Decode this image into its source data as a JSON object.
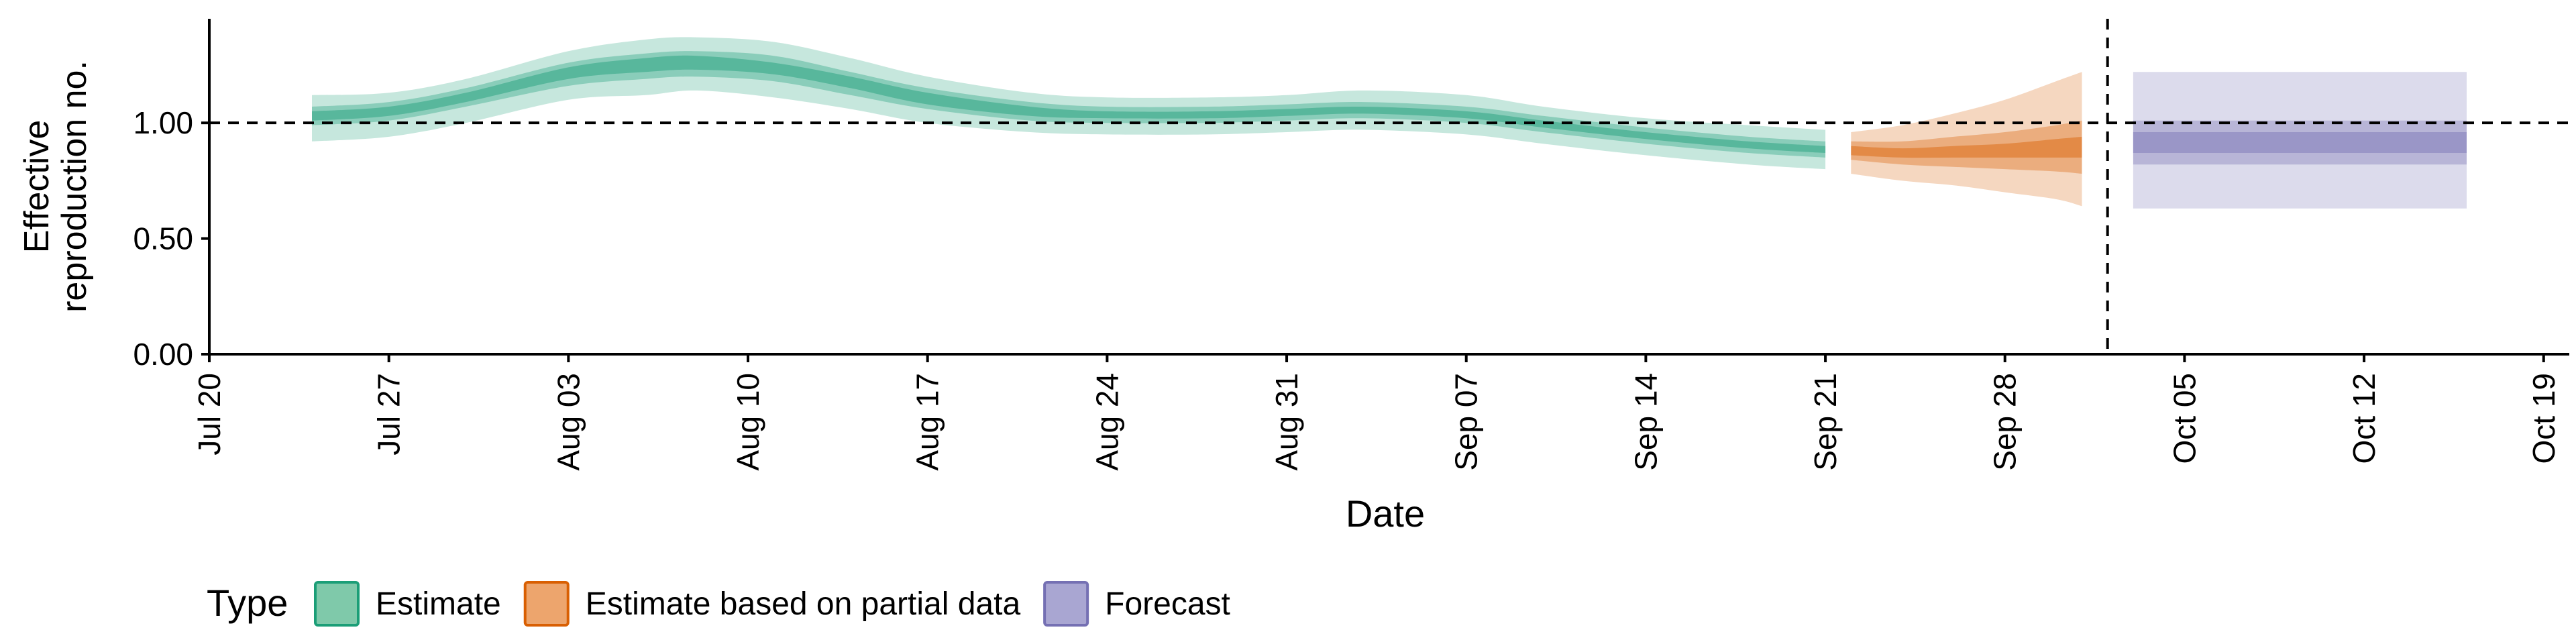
{
  "chart_data": {
    "type": "area",
    "xlabel": "Date",
    "ylabel_lines": [
      "Effective",
      "reproduction no."
    ],
    "ylim": [
      0,
      1.45
    ],
    "xlim": [
      "2020-07-20",
      "2020-10-20"
    ],
    "grid": false,
    "yticks": [
      {
        "value": 0.0,
        "label": "0.00"
      },
      {
        "value": 0.5,
        "label": "0.50"
      },
      {
        "value": 1.0,
        "label": "1.00"
      }
    ],
    "xticks": [
      {
        "date": "2020-07-20",
        "label": "Jul 20"
      },
      {
        "date": "2020-07-27",
        "label": "Jul 27"
      },
      {
        "date": "2020-08-03",
        "label": "Aug 03"
      },
      {
        "date": "2020-08-10",
        "label": "Aug 10"
      },
      {
        "date": "2020-08-17",
        "label": "Aug 17"
      },
      {
        "date": "2020-08-24",
        "label": "Aug 24"
      },
      {
        "date": "2020-08-31",
        "label": "Aug 31"
      },
      {
        "date": "2020-09-07",
        "label": "Sep 07"
      },
      {
        "date": "2020-09-14",
        "label": "Sep 14"
      },
      {
        "date": "2020-09-21",
        "label": "Sep 21"
      },
      {
        "date": "2020-09-28",
        "label": "Sep 28"
      },
      {
        "date": "2020-10-05",
        "label": "Oct 05"
      },
      {
        "date": "2020-10-12",
        "label": "Oct 12"
      },
      {
        "date": "2020-10-19",
        "label": "Oct 19"
      }
    ],
    "reference_lines": {
      "horizontal_y": 1.0,
      "vertical_date": "2020-10-02"
    },
    "legend": {
      "position": "bottom-left",
      "title": "Type",
      "entries": [
        {
          "label": "Estimate",
          "fill": "#7fc9aa",
          "stroke": "#1b9e77"
        },
        {
          "label": "Estimate based on partial data",
          "fill": "#eda56d",
          "stroke": "#d95f02"
        },
        {
          "label": "Forecast",
          "fill": "#a9a6d2",
          "stroke": "#7570b3"
        }
      ]
    },
    "series": [
      {
        "type_label": "Estimate",
        "color": "#1b9e77",
        "points": [
          {
            "date": "2020-07-24",
            "lo90": 0.92,
            "lo50": 0.99,
            "lo20": 1.01,
            "hi20": 1.05,
            "hi50": 1.07,
            "hi90": 1.12
          },
          {
            "date": "2020-07-27",
            "lo90": 0.94,
            "lo50": 1.01,
            "lo20": 1.03,
            "hi20": 1.07,
            "hi50": 1.09,
            "hi90": 1.13
          },
          {
            "date": "2020-07-30",
            "lo90": 1.0,
            "lo50": 1.07,
            "lo20": 1.09,
            "hi20": 1.13,
            "hi50": 1.15,
            "hi90": 1.19
          },
          {
            "date": "2020-08-03",
            "lo90": 1.1,
            "lo50": 1.16,
            "lo20": 1.19,
            "hi20": 1.24,
            "hi50": 1.26,
            "hi90": 1.31
          },
          {
            "date": "2020-08-06",
            "lo90": 1.12,
            "lo50": 1.19,
            "lo20": 1.22,
            "hi20": 1.28,
            "hi50": 1.3,
            "hi90": 1.36
          },
          {
            "date": "2020-08-08",
            "lo90": 1.14,
            "lo50": 1.2,
            "lo20": 1.23,
            "hi20": 1.29,
            "hi50": 1.31,
            "hi90": 1.37
          },
          {
            "date": "2020-08-11",
            "lo90": 1.11,
            "lo50": 1.18,
            "lo20": 1.21,
            "hi20": 1.26,
            "hi50": 1.29,
            "hi90": 1.35
          },
          {
            "date": "2020-08-14",
            "lo90": 1.06,
            "lo50": 1.12,
            "lo20": 1.15,
            "hi20": 1.2,
            "hi50": 1.22,
            "hi90": 1.28
          },
          {
            "date": "2020-08-17",
            "lo90": 1.0,
            "lo50": 1.06,
            "lo20": 1.08,
            "hi20": 1.13,
            "hi50": 1.15,
            "hi90": 1.2
          },
          {
            "date": "2020-08-21",
            "lo90": 0.96,
            "lo50": 1.01,
            "lo20": 1.03,
            "hi20": 1.07,
            "hi50": 1.09,
            "hi90": 1.13
          },
          {
            "date": "2020-08-24",
            "lo90": 0.95,
            "lo50": 1.0,
            "lo20": 1.02,
            "hi20": 1.05,
            "hi50": 1.07,
            "hi90": 1.11
          },
          {
            "date": "2020-08-28",
            "lo90": 0.95,
            "lo50": 1.0,
            "lo20": 1.02,
            "hi20": 1.05,
            "hi50": 1.07,
            "hi90": 1.11
          },
          {
            "date": "2020-08-31",
            "lo90": 0.96,
            "lo50": 1.01,
            "lo20": 1.03,
            "hi20": 1.06,
            "hi50": 1.08,
            "hi90": 1.12
          },
          {
            "date": "2020-09-03",
            "lo90": 0.97,
            "lo50": 1.02,
            "lo20": 1.04,
            "hi20": 1.07,
            "hi50": 1.09,
            "hi90": 1.14
          },
          {
            "date": "2020-09-07",
            "lo90": 0.95,
            "lo50": 1.0,
            "lo20": 1.02,
            "hi20": 1.05,
            "hi50": 1.07,
            "hi90": 1.12
          },
          {
            "date": "2020-09-10",
            "lo90": 0.91,
            "lo50": 0.96,
            "lo20": 0.98,
            "hi20": 1.01,
            "hi50": 1.03,
            "hi90": 1.07
          },
          {
            "date": "2020-09-14",
            "lo90": 0.86,
            "lo50": 0.91,
            "lo20": 0.93,
            "hi20": 0.96,
            "hi50": 0.98,
            "hi90": 1.02
          },
          {
            "date": "2020-09-18",
            "lo90": 0.82,
            "lo50": 0.87,
            "lo20": 0.89,
            "hi20": 0.92,
            "hi50": 0.94,
            "hi90": 0.99
          },
          {
            "date": "2020-09-21",
            "lo90": 0.8,
            "lo50": 0.85,
            "lo20": 0.87,
            "hi20": 0.9,
            "hi50": 0.92,
            "hi90": 0.97
          }
        ]
      },
      {
        "type_label": "Estimate based on partial data",
        "color": "#d95f02",
        "points": [
          {
            "date": "2020-09-22",
            "lo90": 0.78,
            "lo50": 0.84,
            "lo20": 0.86,
            "hi20": 0.9,
            "hi50": 0.92,
            "hi90": 0.96
          },
          {
            "date": "2020-09-24",
            "lo90": 0.75,
            "lo50": 0.82,
            "lo20": 0.85,
            "hi20": 0.89,
            "hi50": 0.92,
            "hi90": 0.99
          },
          {
            "date": "2020-09-26",
            "lo90": 0.73,
            "lo50": 0.81,
            "lo20": 0.85,
            "hi20": 0.9,
            "hi50": 0.94,
            "hi90": 1.04
          },
          {
            "date": "2020-09-28",
            "lo90": 0.7,
            "lo50": 0.8,
            "lo20": 0.85,
            "hi20": 0.91,
            "hi50": 0.96,
            "hi90": 1.1
          },
          {
            "date": "2020-09-30",
            "lo90": 0.67,
            "lo50": 0.79,
            "lo20": 0.85,
            "hi20": 0.93,
            "hi50": 0.99,
            "hi90": 1.18
          },
          {
            "date": "2020-10-01",
            "lo90": 0.64,
            "lo50": 0.78,
            "lo20": 0.85,
            "hi20": 0.94,
            "hi50": 1.01,
            "hi90": 1.22
          }
        ]
      },
      {
        "type_label": "Forecast",
        "color": "#7570b3",
        "points": [
          {
            "date": "2020-10-03",
            "lo90": 0.63,
            "lo50": 0.82,
            "lo20": 0.87,
            "hi20": 0.96,
            "hi50": 1.01,
            "hi90": 1.22
          },
          {
            "date": "2020-10-16",
            "lo90": 0.63,
            "lo50": 0.82,
            "lo20": 0.87,
            "hi20": 0.96,
            "hi50": 1.01,
            "hi90": 1.22
          }
        ]
      }
    ]
  }
}
